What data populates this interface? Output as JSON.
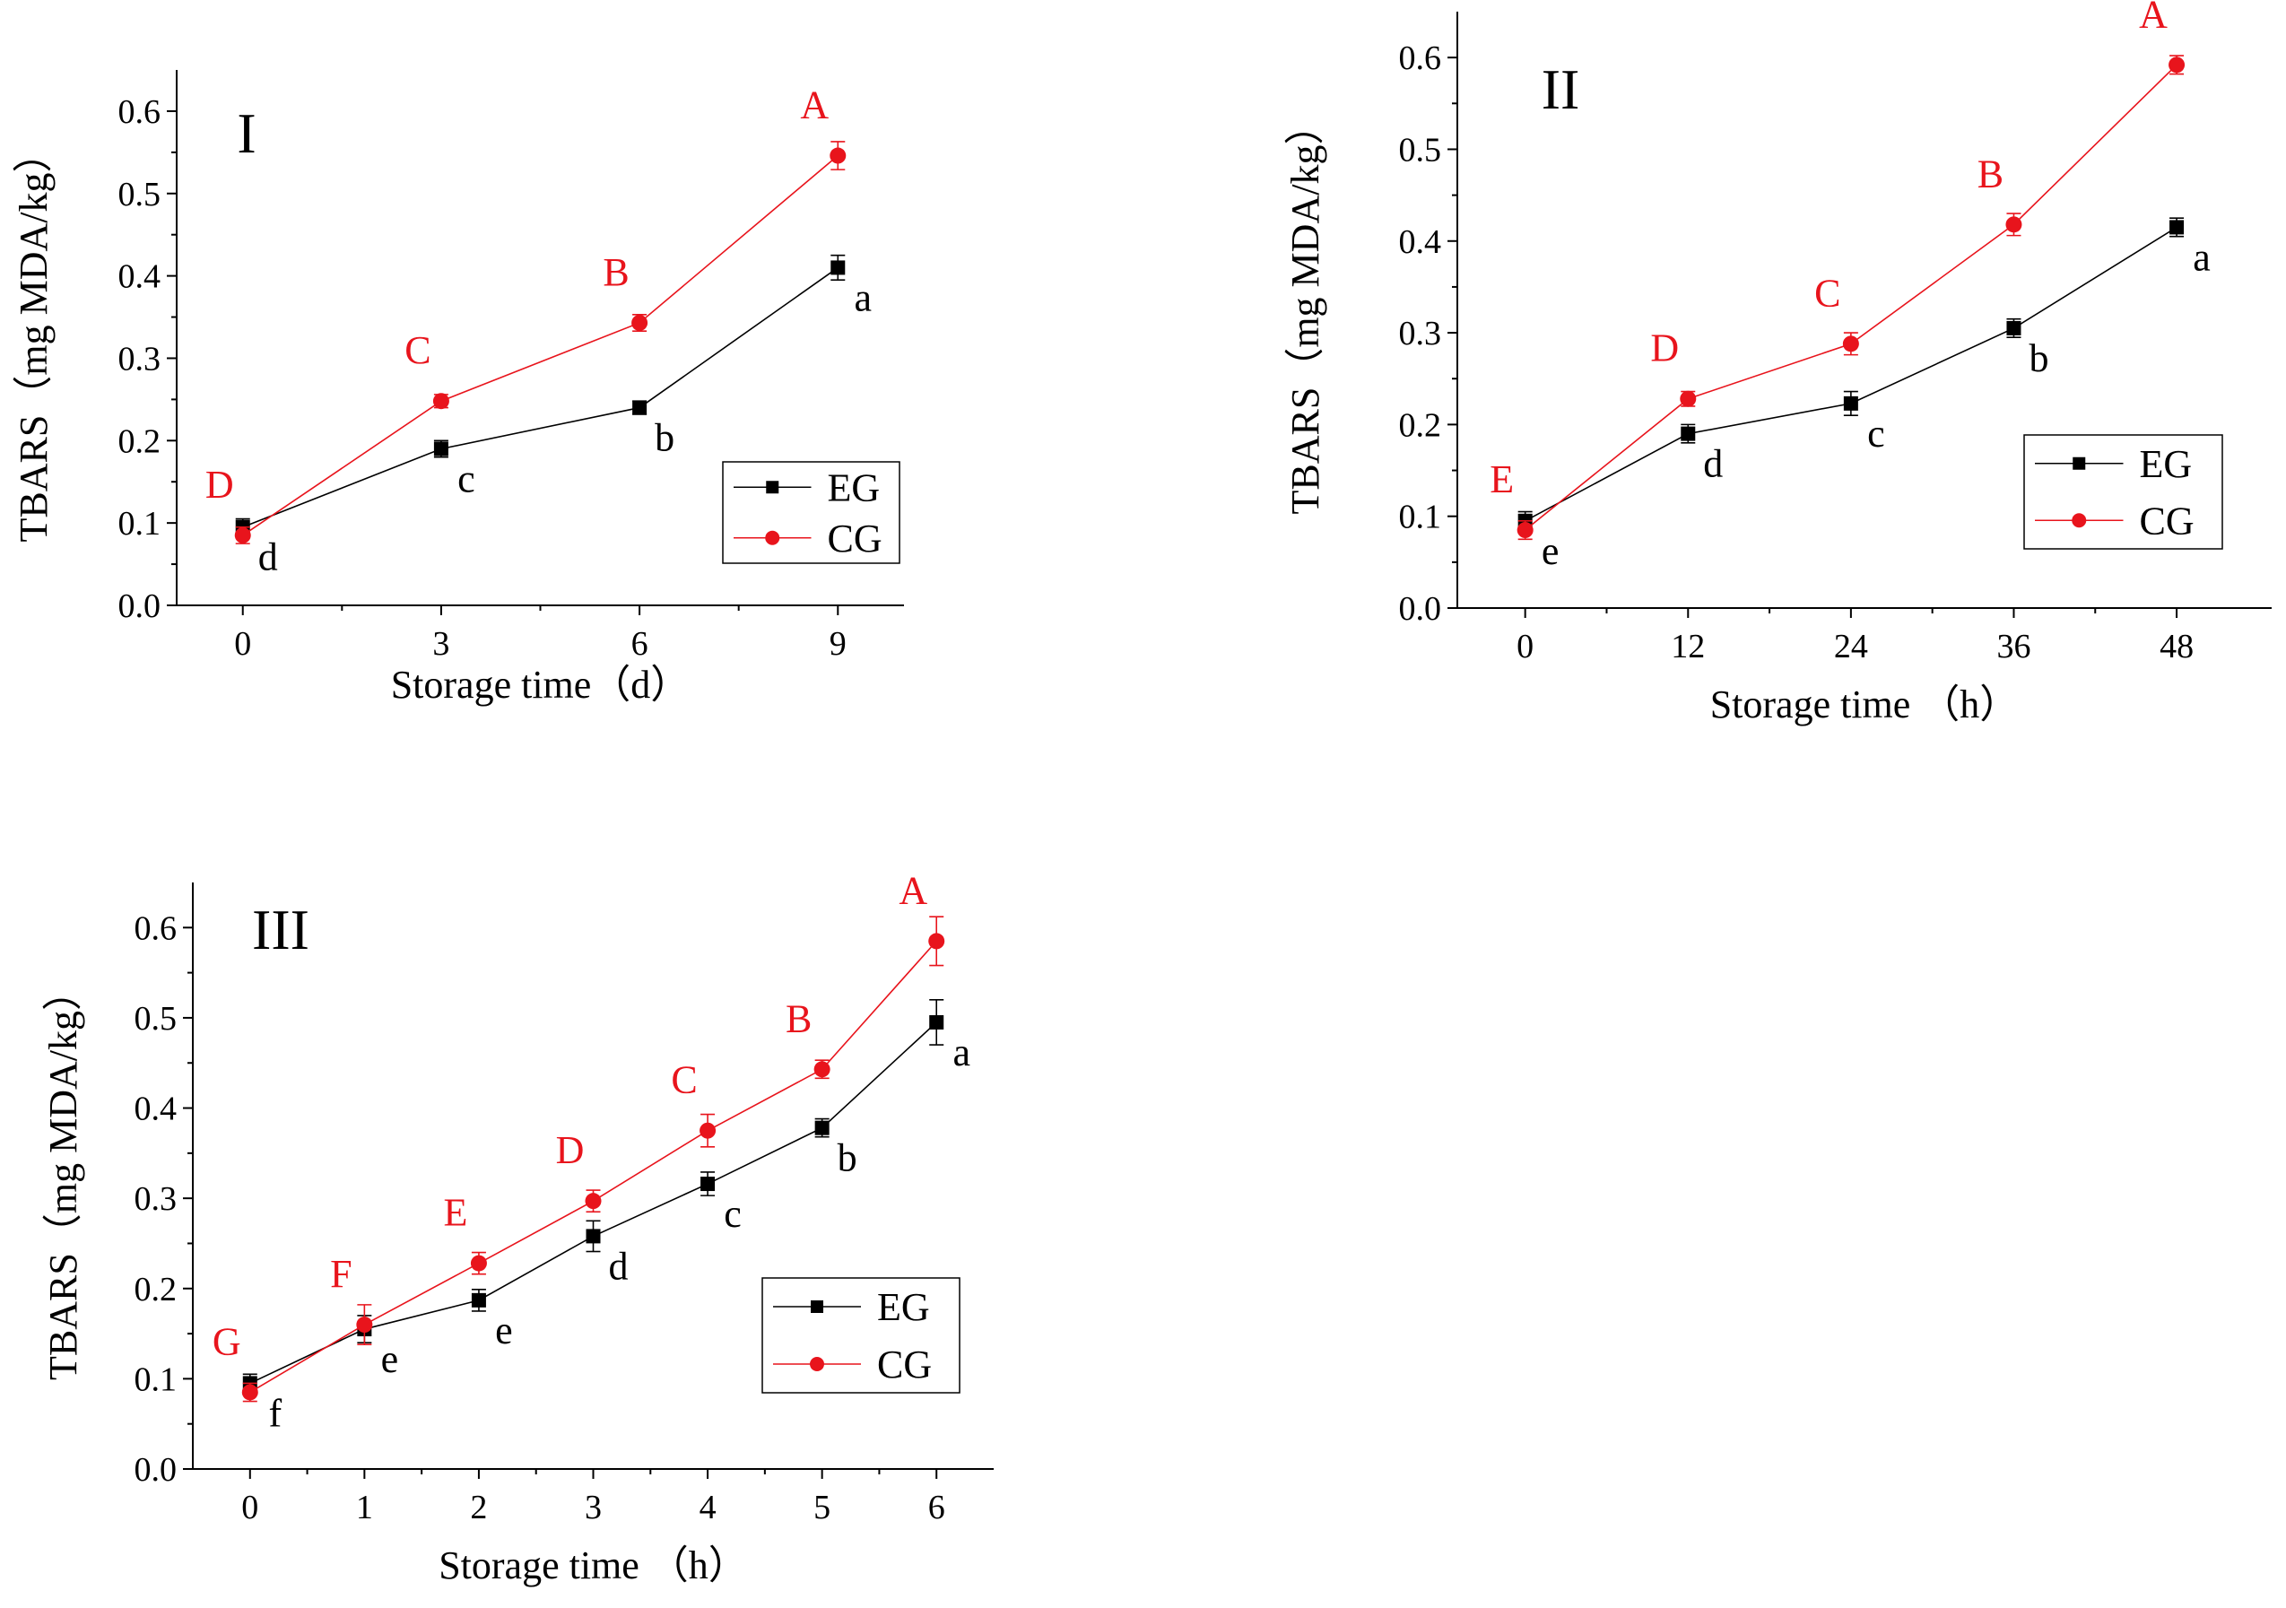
{
  "chart_data": [
    {
      "type": "line",
      "panel_label": "I",
      "xlabel": "Storage time（d）",
      "ylabel": "TBARS（mg MDA/kg）",
      "x": [
        0,
        3,
        6,
        9
      ],
      "x_ticks": [
        "0",
        "3",
        "6",
        "9"
      ],
      "xlim": [
        -1,
        10
      ],
      "ylim": [
        0.0,
        0.65
      ],
      "y_ticks": [
        "0.0",
        "0.1",
        "0.2",
        "0.3",
        "0.4",
        "0.5",
        "0.6"
      ],
      "legend_position": "lower-right",
      "series": [
        {
          "name": "EG",
          "color": "#000000",
          "marker": "square",
          "values": [
            0.095,
            0.19,
            0.24,
            0.41
          ],
          "errors": [
            0.01,
            0.01,
            0.008,
            0.015
          ],
          "letters": [
            "d",
            "c",
            "b",
            "a"
          ]
        },
        {
          "name": "CG",
          "color": "#e8141c",
          "marker": "circle",
          "values": [
            0.085,
            0.248,
            0.343,
            0.546
          ],
          "errors": [
            0.01,
            0.008,
            0.01,
            0.017
          ],
          "letters": [
            "D",
            "C",
            "B",
            "A"
          ]
        }
      ]
    },
    {
      "type": "line",
      "panel_label": "II",
      "xlabel": "Storage time （h）",
      "ylabel": "TBARS（mg MDA/kg）",
      "x": [
        0,
        12,
        24,
        36,
        48
      ],
      "x_ticks": [
        "0",
        "12",
        "24",
        "36",
        "48"
      ],
      "xlim": [
        -5,
        55
      ],
      "ylim": [
        0.0,
        0.65
      ],
      "y_ticks": [
        "0.0",
        "0.1",
        "0.2",
        "0.3",
        "0.4",
        "0.5",
        "0.6"
      ],
      "legend_position": "lower-right",
      "series": [
        {
          "name": "EG",
          "color": "#000000",
          "marker": "square",
          "values": [
            0.095,
            0.19,
            0.223,
            0.305,
            0.415
          ],
          "errors": [
            0.01,
            0.01,
            0.013,
            0.01,
            0.01
          ],
          "letters": [
            "e",
            "d",
            "c",
            "b",
            "a"
          ]
        },
        {
          "name": "CG",
          "color": "#e8141c",
          "marker": "circle",
          "values": [
            0.085,
            0.228,
            0.288,
            0.418,
            0.592
          ],
          "errors": [
            0.01,
            0.008,
            0.012,
            0.012,
            0.01
          ],
          "letters": [
            "E",
            "D",
            "C",
            "B",
            "A"
          ]
        }
      ]
    },
    {
      "type": "line",
      "panel_label": "III",
      "xlabel": "Storage time （h）",
      "ylabel": "TBARS（mg MDA/kg）",
      "x": [
        0,
        1,
        2,
        3,
        4,
        5,
        6
      ],
      "x_ticks": [
        "0",
        "1",
        "2",
        "3",
        "4",
        "5",
        "6"
      ],
      "xlim": [
        -0.5,
        6.5
      ],
      "ylim": [
        0.0,
        0.65
      ],
      "y_ticks": [
        "0.0",
        "0.1",
        "0.2",
        "0.3",
        "0.4",
        "0.5",
        "0.6"
      ],
      "legend_position": "lower-right",
      "series": [
        {
          "name": "EG",
          "color": "#000000",
          "marker": "square",
          "values": [
            0.095,
            0.155,
            0.187,
            0.258,
            0.316,
            0.378,
            0.495
          ],
          "errors": [
            0.01,
            0.015,
            0.012,
            0.017,
            0.013,
            0.01,
            0.025
          ],
          "letters": [
            "f",
            "e",
            "e",
            "d",
            "c",
            "b",
            "a"
          ]
        },
        {
          "name": "CG",
          "color": "#e8141c",
          "marker": "circle",
          "values": [
            0.085,
            0.16,
            0.228,
            0.297,
            0.375,
            0.443,
            0.585
          ],
          "errors": [
            0.01,
            0.022,
            0.012,
            0.012,
            0.018,
            0.01,
            0.027
          ],
          "letters": [
            "G",
            "F",
            "E",
            "D",
            "C",
            "B",
            "A"
          ]
        }
      ]
    }
  ]
}
